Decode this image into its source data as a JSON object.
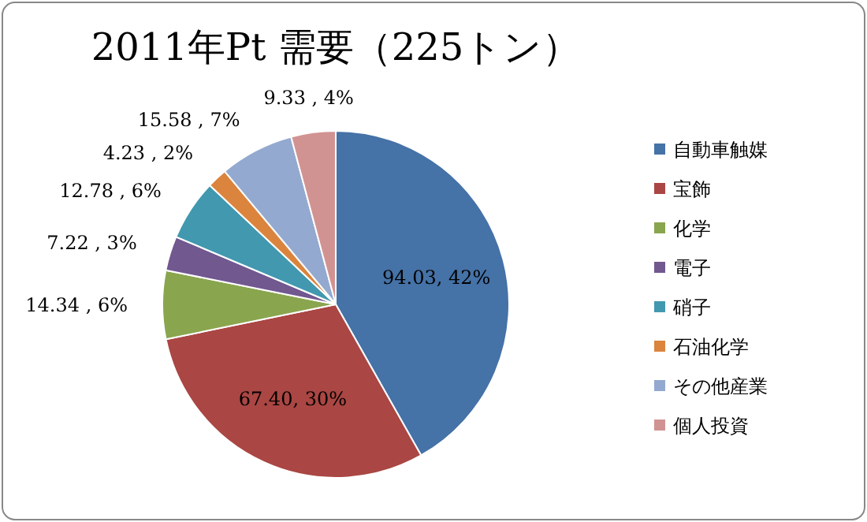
{
  "chart_data": {
    "type": "pie",
    "title": "2011年Pt 需要（225トン）",
    "categories": [
      "自動車触媒",
      "宝飾",
      "化学",
      "電子",
      "硝子",
      "石油化学",
      "その他産業",
      "個人投資"
    ],
    "values": [
      94.03,
      67.4,
      14.34,
      7.22,
      12.78,
      4.23,
      15.58,
      9.33
    ],
    "value_labels": [
      "94.03, 42%",
      "67.40, 30%",
      "14.34 , 6%",
      "7.22 , 3%",
      "12.78 , 6%",
      "4.23 , 2%",
      "15.58 , 7%",
      "9.33 , 4%"
    ],
    "colors": [
      "#4572a7",
      "#aa4643",
      "#89a54e",
      "#71588f",
      "#4198af",
      "#db843d",
      "#93a9cf",
      "#d19392"
    ],
    "legend": "right"
  }
}
